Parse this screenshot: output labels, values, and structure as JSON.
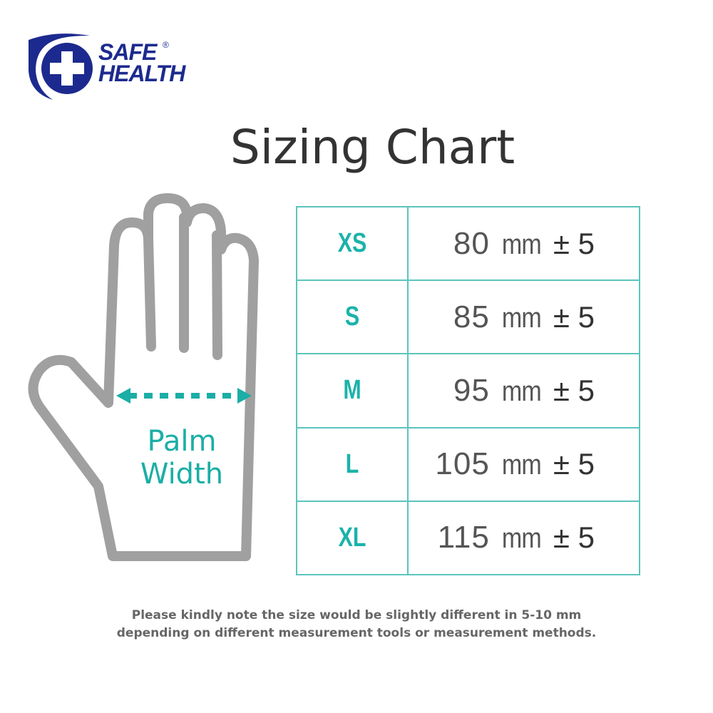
{
  "logo": {
    "line1": "SAFE",
    "line2": "HEALTH",
    "registered": "®",
    "color": "#1c2a8f"
  },
  "title": "Sizing Chart",
  "hand": {
    "label_line1": "Palm",
    "label_line2": "Width",
    "outline_color": "#a0a0a0",
    "accent_color": "#1aaea6"
  },
  "sizes": [
    {
      "size": "XS",
      "value": "80",
      "unit": "mm",
      "tolerance": "± 5"
    },
    {
      "size": "S",
      "value": "85",
      "unit": "mm",
      "tolerance": "± 5"
    },
    {
      "size": "M",
      "value": "95",
      "unit": "mm",
      "tolerance": "± 5"
    },
    {
      "size": "L",
      "value": "105",
      "unit": "mm",
      "tolerance": "± 5"
    },
    {
      "size": "XL",
      "value": "115",
      "unit": "mm",
      "tolerance": "± 5"
    }
  ],
  "note": {
    "line1": "Please kindly note the size would be slightly different in 5-10 mm",
    "line2": "depending on different measurement tools or measurement methods."
  }
}
